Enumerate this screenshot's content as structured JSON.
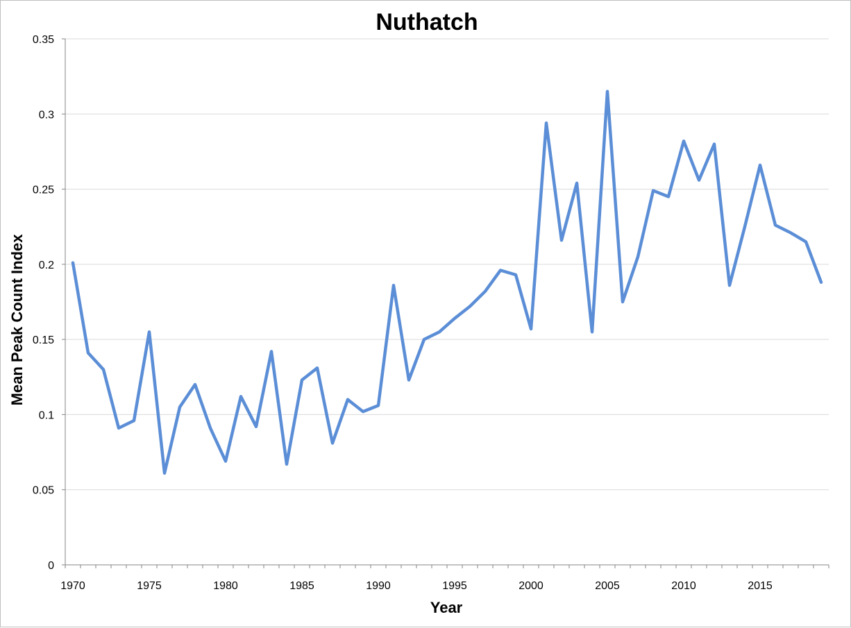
{
  "chart_data": {
    "type": "line",
    "title": "Nuthatch",
    "xlabel": "Year",
    "ylabel": "Mean Peak Count Index",
    "xlim": [
      1970,
      2019
    ],
    "ylim": [
      0,
      0.35
    ],
    "x_ticks": [
      "1970",
      "1975",
      "1980",
      "1985",
      "1990",
      "1995",
      "2000",
      "2005",
      "2010",
      "2015"
    ],
    "y_ticks": [
      "0",
      "0.05",
      "0.1",
      "0.15",
      "0.2",
      "0.25",
      "0.3",
      "0.35"
    ],
    "y_tick_values": [
      0,
      0.05,
      0.1,
      0.15,
      0.2,
      0.25,
      0.3,
      0.35
    ],
    "grid": "horizontal",
    "legend": "none",
    "series": [
      {
        "color": "#5B8ED6",
        "x": [
          1970,
          1971,
          1972,
          1973,
          1974,
          1975,
          1976,
          1977,
          1978,
          1979,
          1980,
          1981,
          1982,
          1983,
          1984,
          1985,
          1986,
          1987,
          1988,
          1989,
          1990,
          1991,
          1992,
          1993,
          1994,
          1995,
          1996,
          1997,
          1998,
          1999,
          2000,
          2001,
          2002,
          2003,
          2004,
          2005,
          2006,
          2007,
          2008,
          2009,
          2010,
          2011,
          2012,
          2013,
          2014,
          2015,
          2016,
          2017,
          2018,
          2019
        ],
        "values": [
          0.201,
          0.141,
          0.13,
          0.091,
          0.096,
          0.155,
          0.061,
          0.105,
          0.12,
          0.091,
          0.069,
          0.112,
          0.092,
          0.142,
          0.067,
          0.123,
          0.131,
          0.081,
          0.11,
          0.102,
          0.106,
          0.186,
          0.123,
          0.15,
          0.155,
          0.164,
          0.172,
          0.182,
          0.196,
          0.193,
          0.157,
          0.294,
          0.216,
          0.254,
          0.155,
          0.315,
          0.175,
          0.205,
          0.249,
          0.245,
          0.282,
          0.256,
          0.28,
          0.186,
          0.225,
          0.266,
          0.226,
          0.221,
          0.215,
          0.188
        ]
      }
    ]
  }
}
